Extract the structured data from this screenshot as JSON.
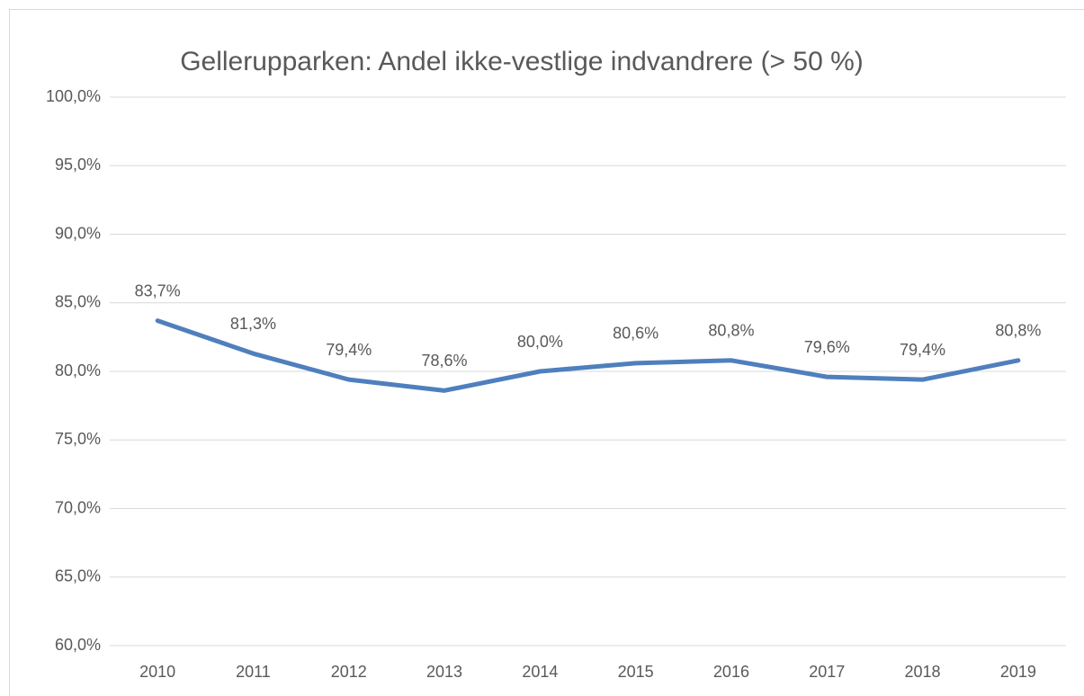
{
  "chart_data": {
    "type": "line",
    "title": "Gellerupparken: Andel ikke-vestlige indvandrere (> 50 %)",
    "categories": [
      "2010",
      "2011",
      "2012",
      "2013",
      "2014",
      "2015",
      "2016",
      "2017",
      "2018",
      "2019"
    ],
    "values": [
      83.7,
      81.3,
      79.4,
      78.6,
      80.0,
      80.6,
      80.8,
      79.6,
      79.4,
      80.8
    ],
    "value_labels": [
      "83,7%",
      "81,3%",
      "79,4%",
      "78,6%",
      "80,0%",
      "80,6%",
      "80,8%",
      "79,6%",
      "79,4%",
      "80,8%"
    ],
    "color": "#4f7fbd",
    "ylim": [
      60,
      100
    ],
    "yticks": [
      {
        "value": 60,
        "label": "60,0%"
      },
      {
        "value": 65,
        "label": "65,0%"
      },
      {
        "value": 70,
        "label": "70,0%"
      },
      {
        "value": 75,
        "label": "75,0%"
      },
      {
        "value": 80,
        "label": "80,0%"
      },
      {
        "value": 85,
        "label": "85,0%"
      },
      {
        "value": 90,
        "label": "90,0%"
      },
      {
        "value": 95,
        "label": "95,0%"
      },
      {
        "value": 100,
        "label": "100,0%"
      }
    ],
    "grid": true
  }
}
